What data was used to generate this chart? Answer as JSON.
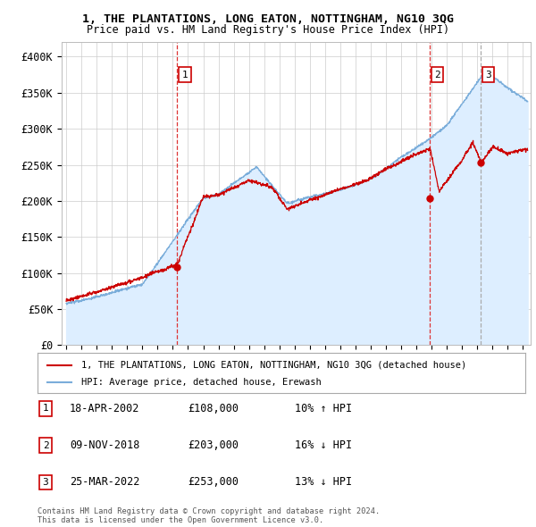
{
  "title": "1, THE PLANTATIONS, LONG EATON, NOTTINGHAM, NG10 3QG",
  "subtitle": "Price paid vs. HM Land Registry's House Price Index (HPI)",
  "ylim": [
    0,
    420000
  ],
  "yticks": [
    0,
    50000,
    100000,
    150000,
    200000,
    250000,
    300000,
    350000,
    400000
  ],
  "ytick_labels": [
    "£0",
    "£50K",
    "£100K",
    "£150K",
    "£200K",
    "£250K",
    "£300K",
    "£350K",
    "£400K"
  ],
  "sale_dates": [
    "2002-04-18",
    "2018-11-09",
    "2022-03-25"
  ],
  "sale_prices": [
    108000,
    203000,
    253000
  ],
  "sale_labels": [
    "1",
    "2",
    "3"
  ],
  "sale_info": [
    {
      "label": "1",
      "date": "18-APR-2002",
      "price": "£108,000",
      "hpi": "10% ↑ HPI"
    },
    {
      "label": "2",
      "date": "09-NOV-2018",
      "price": "£203,000",
      "hpi": "16% ↓ HPI"
    },
    {
      "label": "3",
      "date": "25-MAR-2022",
      "price": "£253,000",
      "hpi": "13% ↓ HPI"
    }
  ],
  "legend_label_red": "1, THE PLANTATIONS, LONG EATON, NOTTINGHAM, NG10 3QG (detached house)",
  "legend_label_blue": "HPI: Average price, detached house, Erewash",
  "footer": "Contains HM Land Registry data © Crown copyright and database right 2024.\nThis data is licensed under the Open Government Licence v3.0.",
  "red_color": "#cc0000",
  "blue_color": "#7aadda",
  "fill_color": "#ddeeff",
  "vline_color_red": "#dd3333",
  "vline_color_gray": "#aaaaaa",
  "background_color": "#ffffff",
  "grid_color": "#cccccc",
  "xlim_start": 1994.7,
  "xlim_end": 2025.5
}
